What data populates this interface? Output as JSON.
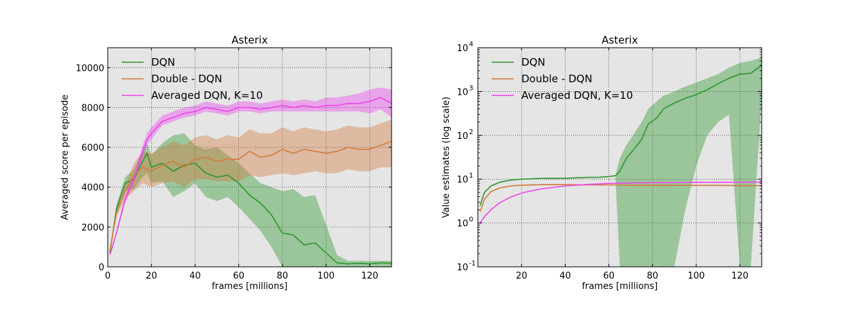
{
  "colors": {
    "dqn": "#2c962c",
    "ddqn": "#d27a3b",
    "avg": "#ee44ee",
    "plot_bg": "#e5e5e5"
  },
  "chart_data": [
    {
      "type": "line",
      "title": "Asterix",
      "xlabel": "frames [millions]",
      "ylabel": "Averaged score per episode",
      "xlim": [
        0,
        130
      ],
      "ylim": [
        0,
        11000
      ],
      "xticks": [
        0,
        20,
        40,
        60,
        80,
        100,
        120
      ],
      "yticks": [
        0,
        2000,
        4000,
        6000,
        8000,
        10000
      ],
      "grid": true,
      "legend_position": "top-left",
      "shaded_bands": true,
      "series": [
        {
          "name": "DQN",
          "key": "dqn",
          "x": [
            1,
            4,
            8,
            12,
            16,
            18,
            20,
            25,
            30,
            35,
            40,
            45,
            50,
            55,
            60,
            65,
            70,
            75,
            80,
            85,
            90,
            95,
            100,
            105,
            110,
            115,
            120,
            125,
            130
          ],
          "values": [
            700,
            2900,
            4200,
            4400,
            5300,
            5700,
            5000,
            5200,
            4800,
            5100,
            5200,
            4700,
            4500,
            4600,
            4200,
            3600,
            3200,
            2600,
            1700,
            1600,
            1100,
            1200,
            700,
            200,
            150,
            180,
            150,
            200,
            180
          ],
          "lower": [
            700,
            2700,
            3800,
            3900,
            4500,
            4700,
            4200,
            4300,
            3500,
            3800,
            4200,
            3500,
            3300,
            3500,
            3000,
            2400,
            1800,
            1000,
            0,
            0,
            0,
            0,
            0,
            0,
            0,
            0,
            0,
            0,
            0
          ],
          "upper": [
            700,
            3100,
            4500,
            4900,
            5800,
            6200,
            5600,
            6200,
            6600,
            6700,
            6100,
            5900,
            6000,
            5600,
            5200,
            4700,
            4200,
            4000,
            3800,
            3900,
            3500,
            3600,
            2100,
            600,
            300,
            300,
            300,
            300,
            300
          ]
        },
        {
          "name": "Double - DQN",
          "key": "ddqn",
          "x": [
            1,
            4,
            8,
            12,
            16,
            20,
            25,
            30,
            35,
            40,
            45,
            50,
            55,
            60,
            65,
            70,
            75,
            80,
            85,
            90,
            95,
            100,
            105,
            110,
            115,
            120,
            125,
            130
          ],
          "values": [
            800,
            2700,
            3800,
            4600,
            5000,
            4800,
            5100,
            5300,
            5000,
            5400,
            5500,
            5300,
            5400,
            5400,
            5800,
            5500,
            5600,
            5900,
            5700,
            5900,
            5800,
            5700,
            5800,
            6000,
            5900,
            5900,
            6100,
            6300
          ],
          "lower": [
            800,
            2500,
            3400,
            3800,
            4200,
            4000,
            4200,
            4300,
            4000,
            4400,
            4400,
            4300,
            4300,
            4300,
            4600,
            4500,
            4600,
            4700,
            4600,
            4700,
            4800,
            4700,
            4700,
            4900,
            4800,
            4800,
            5000,
            5000
          ],
          "upper": [
            800,
            2900,
            4100,
            5200,
            5800,
            5700,
            6000,
            6300,
            6100,
            6500,
            6600,
            6400,
            6600,
            6500,
            6900,
            6700,
            6700,
            7000,
            6800,
            7000,
            6900,
            6800,
            6900,
            7100,
            7000,
            7000,
            7200,
            7400
          ]
        },
        {
          "name": "Averaged DQN, K=10",
          "key": "avg",
          "x": [
            1,
            4,
            8,
            12,
            16,
            18,
            20,
            25,
            30,
            35,
            40,
            45,
            50,
            55,
            60,
            65,
            70,
            75,
            80,
            85,
            90,
            95,
            100,
            105,
            110,
            115,
            120,
            125,
            130
          ],
          "values": [
            600,
            1700,
            3400,
            4400,
            5800,
            6400,
            6700,
            7300,
            7500,
            7700,
            7800,
            8000,
            7900,
            7800,
            8000,
            8000,
            7900,
            8000,
            8100,
            8000,
            8100,
            8000,
            8100,
            8100,
            8200,
            8200,
            8300,
            8500,
            8200
          ],
          "lower": [
            600,
            1600,
            3200,
            4200,
            5500,
            6100,
            6400,
            7100,
            7300,
            7500,
            7600,
            7800,
            7700,
            7600,
            7800,
            7800,
            7700,
            7800,
            7800,
            7800,
            7800,
            7800,
            7800,
            7800,
            7800,
            7800,
            7700,
            7900,
            7500
          ],
          "upper": [
            600,
            1800,
            3600,
            4600,
            6100,
            6700,
            7000,
            7600,
            7800,
            8000,
            8100,
            8300,
            8200,
            8100,
            8300,
            8300,
            8200,
            8300,
            8400,
            8300,
            8400,
            8300,
            8500,
            8500,
            8600,
            8700,
            8900,
            9000,
            8900
          ]
        }
      ]
    },
    {
      "type": "line",
      "title": "Asterix",
      "xlabel": "frames [millions]",
      "ylabel": "Value estimates (log scale)",
      "xlim": [
        0,
        130
      ],
      "ylim": [
        0.1,
        10000
      ],
      "yscale": "log",
      "xticks": [
        20,
        40,
        60,
        80,
        100,
        120
      ],
      "ytick_exponents": [
        -1,
        0,
        1,
        2,
        3,
        4
      ],
      "grid": true,
      "legend_position": "top-left",
      "shaded_bands": true,
      "series": [
        {
          "name": "DQN",
          "key": "dqn",
          "x": [
            1,
            3,
            6,
            10,
            15,
            20,
            30,
            40,
            50,
            55,
            60,
            63,
            65,
            68,
            71,
            75,
            78,
            82,
            85,
            90,
            95,
            100,
            105,
            110,
            115,
            120,
            125,
            130
          ],
          "values": [
            2.5,
            5,
            7,
            8.5,
            9.5,
            10,
            10.5,
            10.5,
            11,
            11,
            11.5,
            12,
            15,
            30,
            45,
            80,
            180,
            250,
            400,
            550,
            700,
            850,
            1100,
            1500,
            2000,
            2500,
            2600,
            4000
          ],
          "lower": [
            2.5,
            5,
            7,
            8.5,
            9.5,
            10,
            10.5,
            10.5,
            11,
            11,
            11.5,
            12,
            0.1,
            0.1,
            0.1,
            0.1,
            0.1,
            0.1,
            0.1,
            0.1,
            2,
            20,
            100,
            200,
            300,
            0.1,
            0.1,
            700
          ],
          "upper": [
            2.5,
            5,
            7,
            8.5,
            9.5,
            10,
            10.5,
            10.5,
            11,
            11,
            11.5,
            12,
            30,
            60,
            100,
            200,
            400,
            600,
            800,
            1000,
            1300,
            1600,
            2000,
            2500,
            3500,
            4500,
            5000,
            6000
          ]
        },
        {
          "name": "Double - DQN",
          "key": "ddqn",
          "x": [
            1,
            3,
            6,
            10,
            15,
            20,
            30,
            40,
            50,
            60,
            70,
            80,
            90,
            100,
            110,
            120,
            130
          ],
          "values": [
            1.8,
            3.5,
            5.2,
            6.3,
            7,
            7.3,
            7.5,
            7.5,
            7.4,
            7.4,
            7.3,
            7.3,
            7.2,
            7.2,
            7.2,
            7.1,
            7.1
          ],
          "lower": [
            1.7,
            3.3,
            5,
            6.1,
            6.8,
            7.1,
            7.3,
            7.3,
            7.2,
            7.2,
            7.1,
            7.1,
            7,
            7,
            7,
            6.9,
            6.9
          ],
          "upper": [
            1.9,
            3.7,
            5.4,
            6.5,
            7.2,
            7.5,
            7.7,
            7.7,
            7.6,
            7.6,
            7.5,
            7.5,
            7.4,
            7.4,
            7.4,
            7.3,
            7.3
          ]
        },
        {
          "name": "Averaged DQN, K=10",
          "key": "avg",
          "x": [
            1,
            3,
            6,
            10,
            15,
            20,
            25,
            30,
            40,
            50,
            60,
            70,
            80,
            90,
            100,
            110,
            120,
            130
          ],
          "values": [
            1,
            1.4,
            2,
            2.9,
            3.9,
            4.8,
            5.5,
            6.1,
            7,
            7.6,
            8,
            8.2,
            8.3,
            8.4,
            8.5,
            8.5,
            8.5,
            8.6
          ],
          "lower": [
            1,
            1.4,
            2,
            2.9,
            3.9,
            4.8,
            5.5,
            6.1,
            7,
            7.6,
            8,
            8.2,
            8.3,
            8.4,
            8.5,
            8.5,
            8.5,
            8.6
          ],
          "upper": [
            1,
            1.4,
            2,
            2.9,
            3.9,
            4.8,
            5.5,
            6.1,
            7,
            7.6,
            8,
            8.2,
            8.3,
            8.4,
            8.5,
            8.5,
            8.5,
            8.6
          ]
        }
      ]
    }
  ]
}
